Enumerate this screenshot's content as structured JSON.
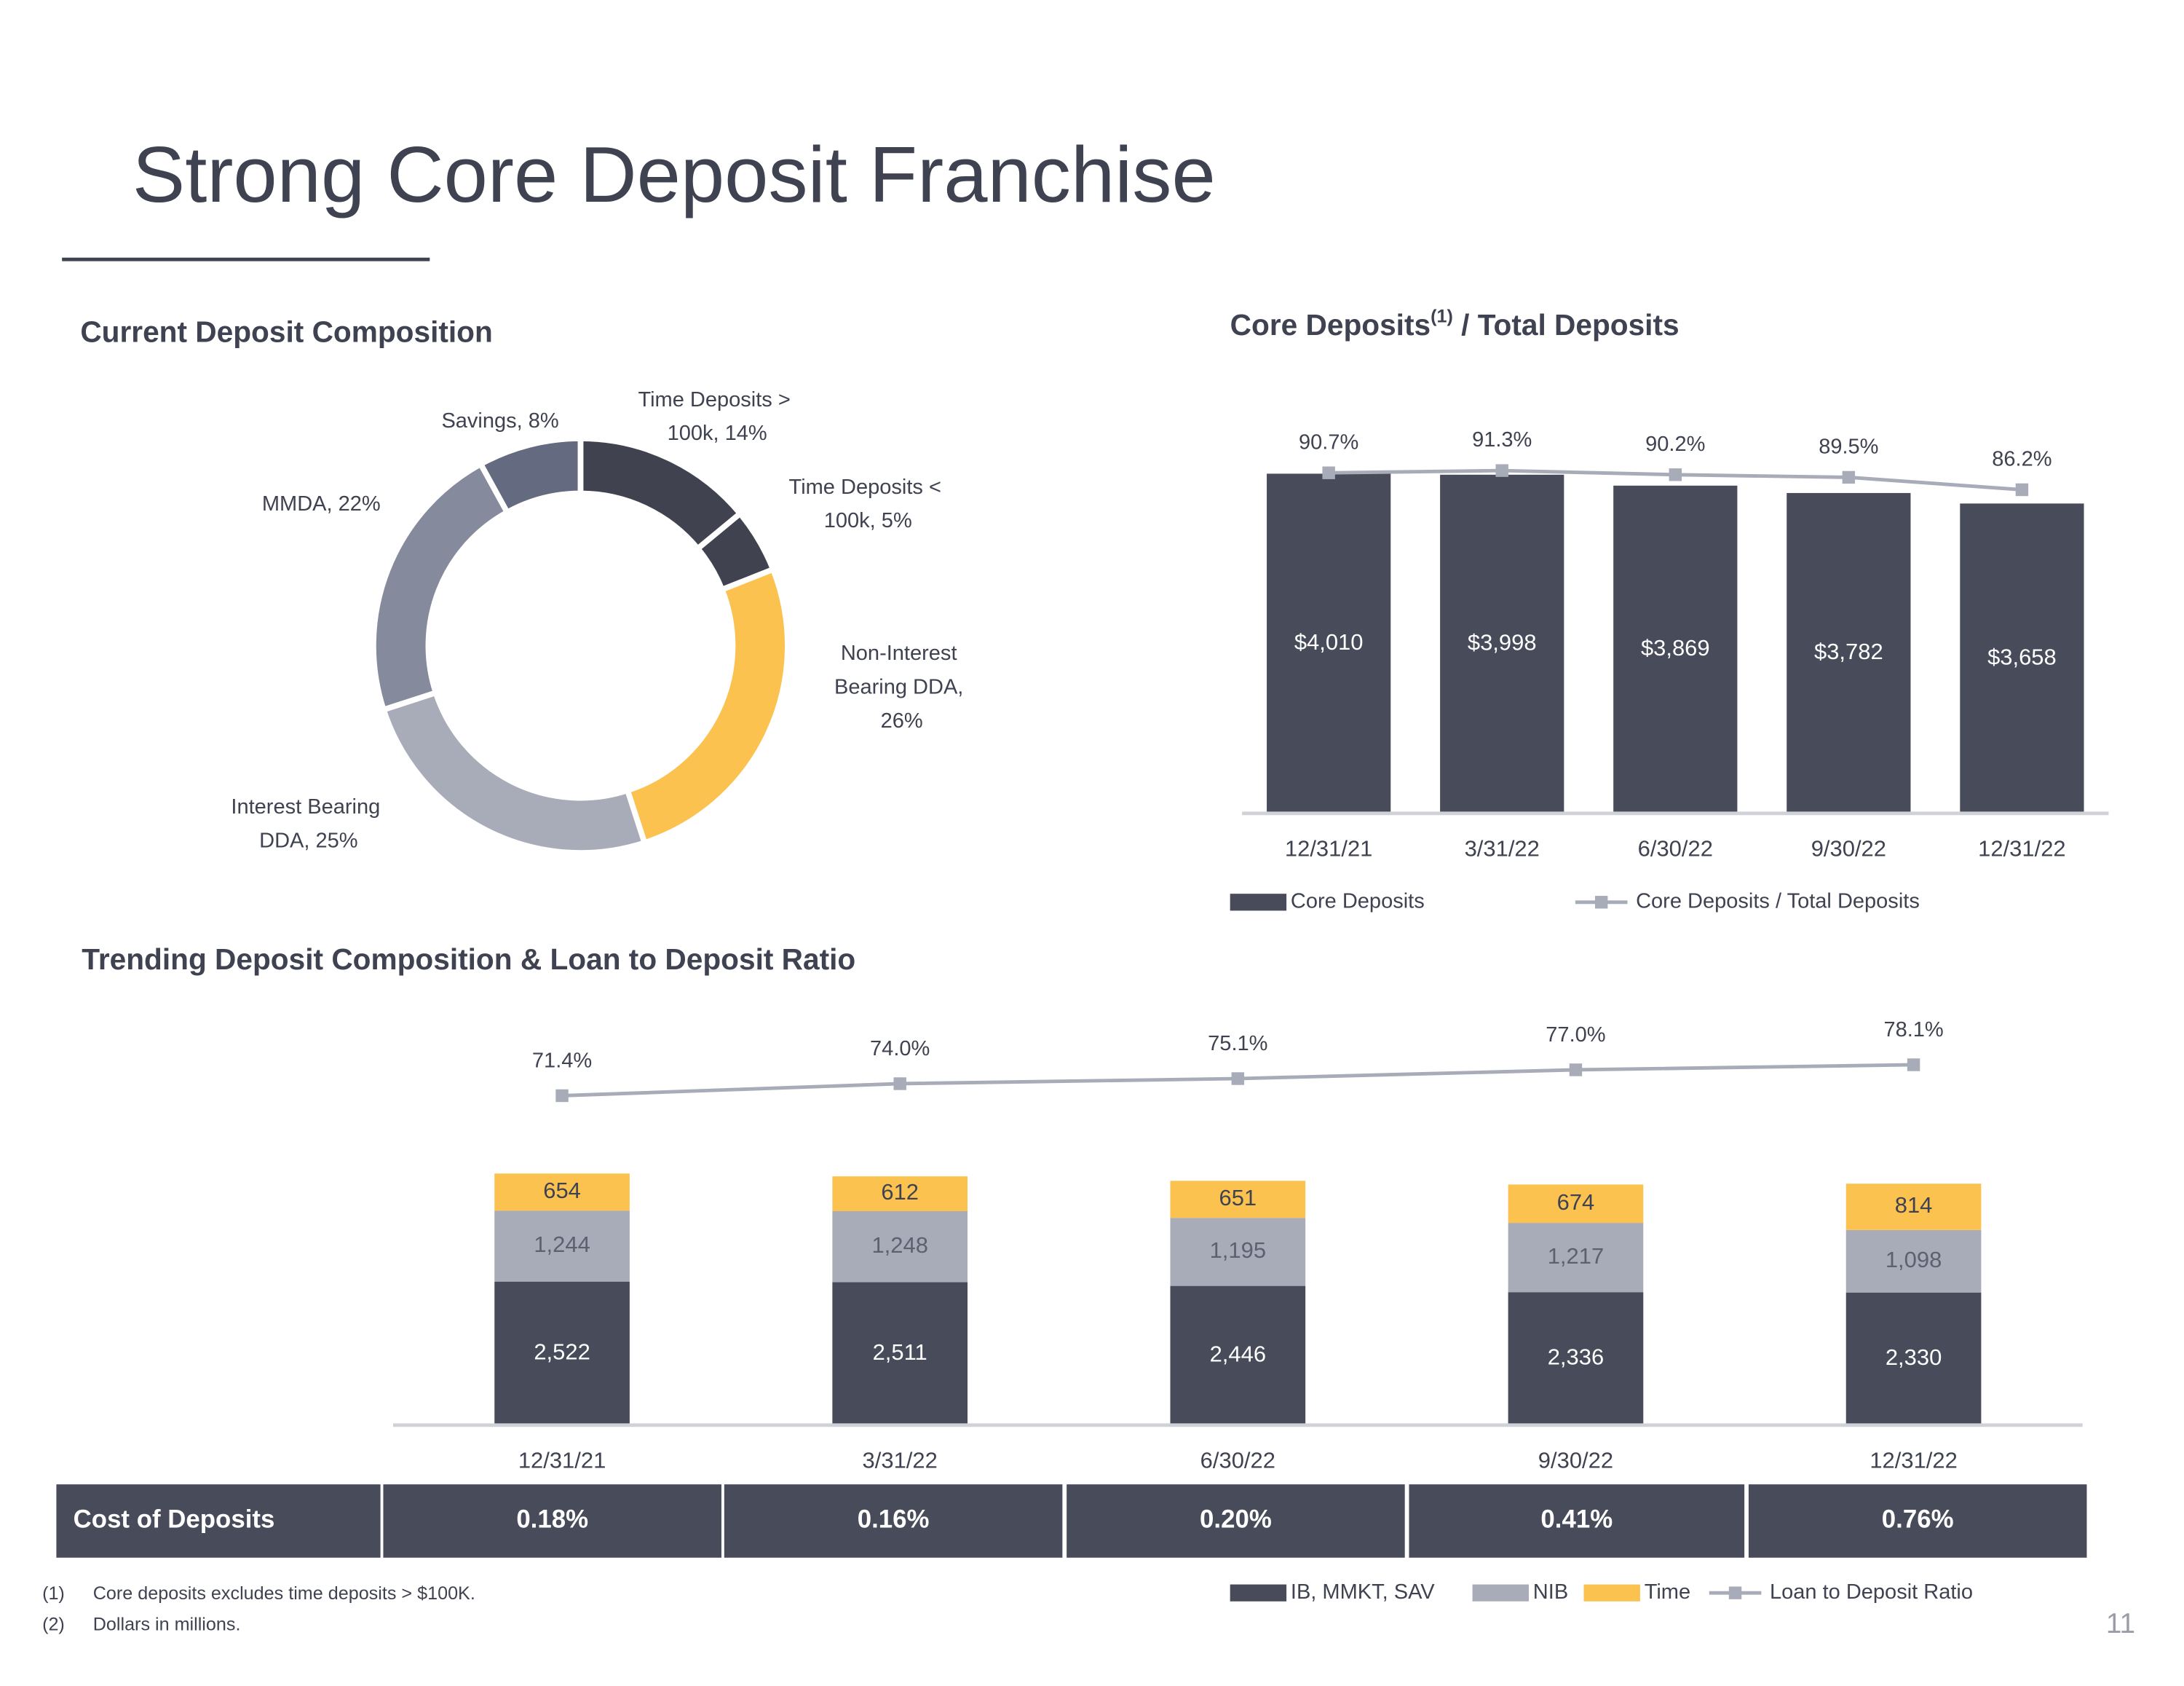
{
  "title": "Strong Core Deposit Franchise",
  "page_number": "11",
  "footnotes": [
    {
      "mark": "(1)",
      "text": "Core deposits excludes time deposits > $100K."
    },
    {
      "mark": "(2)",
      "text": "Dollars in millions."
    }
  ],
  "cost_table": {
    "label": "Cost of Deposits",
    "values": [
      "0.18%",
      "0.16%",
      "0.20%",
      "0.41%",
      "0.76%"
    ]
  },
  "chart_data": [
    {
      "type": "pie",
      "title": "Current Deposit Composition",
      "labels": [
        "Time Deposits > 100k, 14%",
        "Time Deposits < 100k, 5%",
        "Non-Interest Bearing DDA, 26%",
        "Interest Bearing DDA, 25%",
        "MMDA, 22%",
        "Savings, 8%"
      ],
      "values": [
        14,
        5,
        26,
        25,
        22,
        8
      ],
      "colors": [
        "#40434f",
        "#40434f",
        "#fcc250",
        "#a8abb8",
        "#858a9c",
        "#646a80"
      ]
    },
    {
      "type": "combo",
      "title": [
        "Core Deposits",
        "(1)",
        " / Total Deposits"
      ],
      "categories": [
        "12/31/21",
        "3/31/22",
        "6/30/22",
        "9/30/22",
        "12/31/22"
      ],
      "ylim": [
        0,
        4100
      ],
      "y2lim": [
        0,
        92.5
      ],
      "series": [
        {
          "name": "Core Deposits",
          "color": "#474b5a",
          "values": [
            4010,
            3998,
            3869,
            3782,
            3658
          ],
          "value_labels": [
            "$4,010",
            "$3,998",
            "$3,869",
            "$3,782",
            "$3,658"
          ]
        },
        {
          "name": "Core Deposits / Total Deposits",
          "color": "#a8abb8",
          "axis": "y2",
          "values": [
            90.7,
            91.3,
            90.2,
            89.5,
            86.2
          ],
          "value_labels": [
            "90.7%",
            "91.3%",
            "90.2%",
            "89.5%",
            "86.2%"
          ]
        }
      ]
    },
    {
      "type": "combo",
      "title": [
        "Trending Deposit Composition & Loan to Deposit Ratio"
      ],
      "categories": [
        "12/31/21",
        "3/31/22",
        "6/30/22",
        "9/30/22",
        "12/31/22"
      ],
      "ylim": [
        0,
        7700
      ],
      "y2lim": [
        0,
        95
      ],
      "series": [
        {
          "name": "IB, MMKT, SAV",
          "color": "#474b5a",
          "values": [
            2522,
            2511,
            2446,
            2336,
            2330
          ],
          "value_labels": [
            "2,522",
            "2,511",
            "2,446",
            "2,336",
            "2,330"
          ]
        },
        {
          "name": "NIB",
          "color": "#a8abb8",
          "values": [
            1244,
            1248,
            1195,
            1217,
            1098
          ],
          "value_labels": [
            "1,244",
            "1,248",
            "1,195",
            "1,217",
            "1,098"
          ]
        },
        {
          "name": "Time",
          "color": "#fcc250",
          "values": [
            654,
            612,
            651,
            674,
            814
          ],
          "value_labels": [
            "654",
            "612",
            "651",
            "674",
            "814"
          ]
        },
        {
          "name": "Loan to Deposit Ratio",
          "color": "#a8abb8",
          "axis": "y2",
          "values": [
            71.4,
            74.0,
            75.1,
            77.0,
            78.1
          ],
          "value_labels": [
            "71.4%",
            "74.0%",
            "75.1%",
            "77.0%",
            "78.1%"
          ]
        }
      ]
    }
  ]
}
